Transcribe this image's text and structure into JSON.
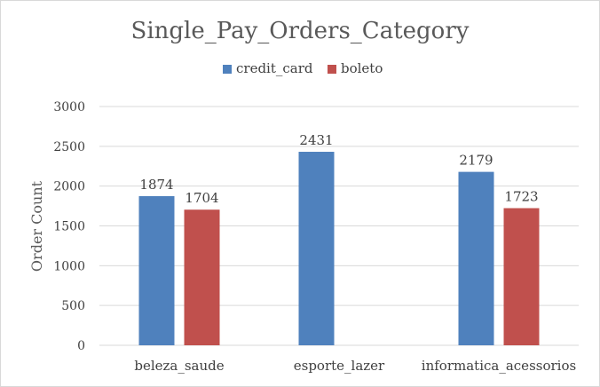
{
  "chart_data": {
    "type": "bar",
    "title": "Single_Pay_Orders_Category",
    "xlabel": "",
    "ylabel": "Order Count",
    "categories": [
      "beleza_saude",
      "esporte_lazer",
      "informatica_acessorios"
    ],
    "series": [
      {
        "name": "credit_card",
        "color": "#4f81bd",
        "values": [
          1874,
          2431,
          2179
        ]
      },
      {
        "name": "boleto",
        "color": "#c0504d",
        "values": [
          1704,
          null,
          1723
        ]
      }
    ],
    "ylim": [
      0,
      3000
    ],
    "yticks": [
      0,
      500,
      1000,
      1500,
      2000,
      2500,
      3000
    ],
    "grid": true,
    "legend_position": "top-center",
    "data_labels": true
  }
}
